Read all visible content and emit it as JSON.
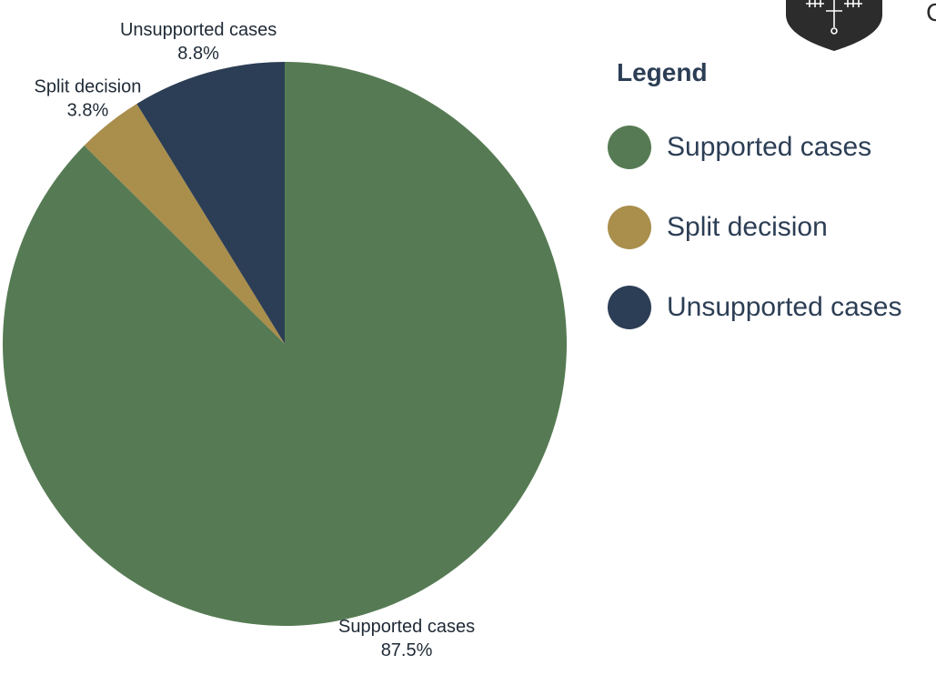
{
  "chart_data": {
    "type": "pie",
    "title": "",
    "slices": [
      {
        "label": "Supported cases",
        "value": 87.5,
        "value_label": "87.5%",
        "color": "#567b54"
      },
      {
        "label": "Split decision",
        "value": 3.8,
        "value_label": "3.8%",
        "color": "#a98e4c"
      },
      {
        "label": "Unsupported cases",
        "value": 8.8,
        "value_label": "8.8%",
        "color": "#2c3e55"
      }
    ],
    "legend": {
      "title": "Legend",
      "placement": "right",
      "items": [
        "Supported cases",
        "Split decision",
        "Unsupported cases"
      ]
    },
    "start_angle": "12 o'clock",
    "direction": "clockwise"
  },
  "logo": {
    "icon": "shield-sword-icon",
    "partial_text": "C",
    "color": "#2c2c2c"
  }
}
